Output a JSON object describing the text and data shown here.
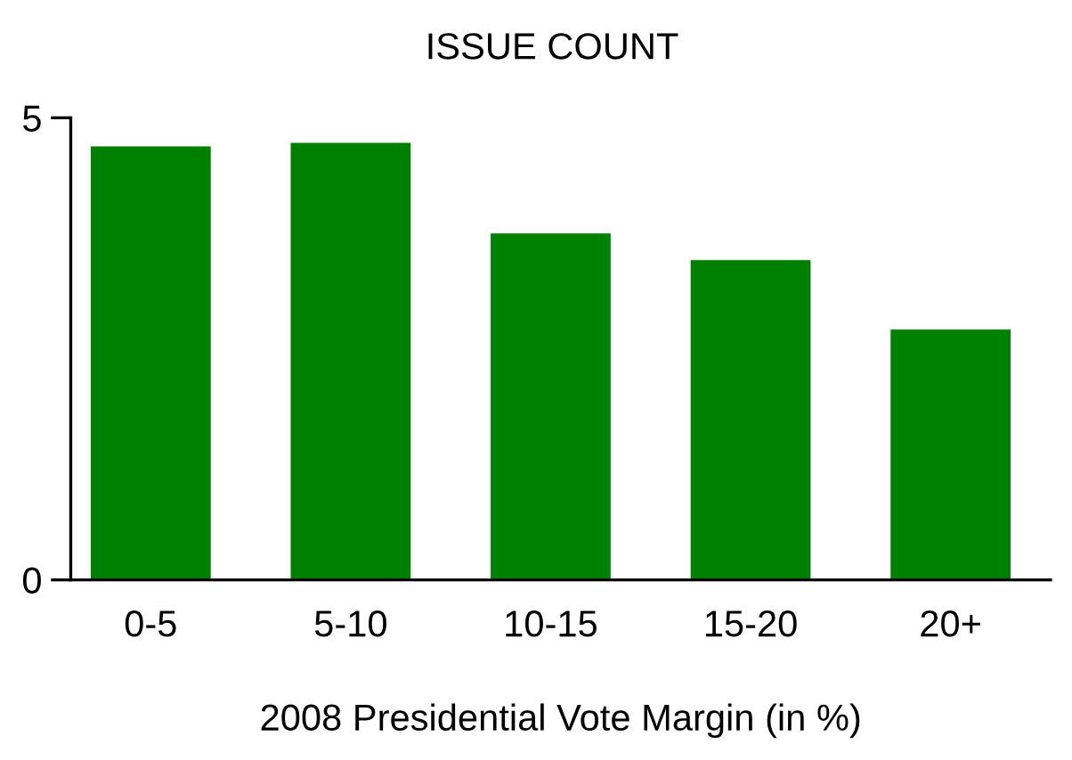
{
  "chart_data": {
    "type": "bar",
    "title": "ISSUE COUNT",
    "xlabel": "2008 Presidential Vote Margin (in %)",
    "categories": [
      "0-5",
      "5-10",
      "10-15",
      "15-20",
      "20+"
    ],
    "values": [
      4.69,
      4.73,
      3.75,
      3.46,
      2.71
    ],
    "color": "#008000",
    "ylim": [
      0,
      5
    ],
    "yticks": [
      0,
      5
    ],
    "grid": false,
    "legend": false
  }
}
